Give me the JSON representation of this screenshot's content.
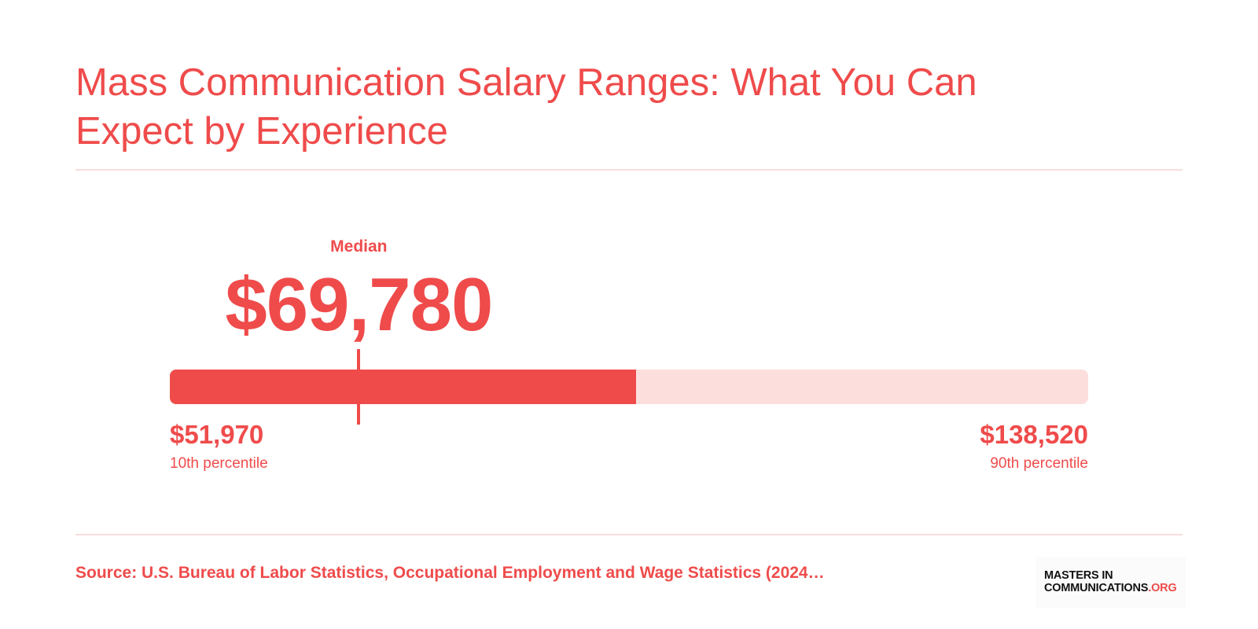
{
  "title": "Mass Communication Salary Ranges: What You Can Expect by Experience",
  "colors": {
    "accent": "#ef4b4b",
    "track": "#fcdfdd",
    "rule": "#f8dedd"
  },
  "chart_data": {
    "type": "range-bar",
    "median": {
      "label": "Median",
      "value": 69780,
      "display": "$69,780"
    },
    "min": {
      "value": 51970,
      "display": "$51,970",
      "label": "10th percentile"
    },
    "max": {
      "value": 138520,
      "display": "$138,520",
      "label": "90th percentile"
    },
    "filled_fraction": 0.508
  },
  "source": "Source: U.S. Bureau of Labor Statistics, Occupational Employment and Wage Statistics (2024…",
  "logo": {
    "line1": "MASTERS IN",
    "line2": "COMMUNICATIONS",
    "line2_suffix": ".ORG"
  }
}
